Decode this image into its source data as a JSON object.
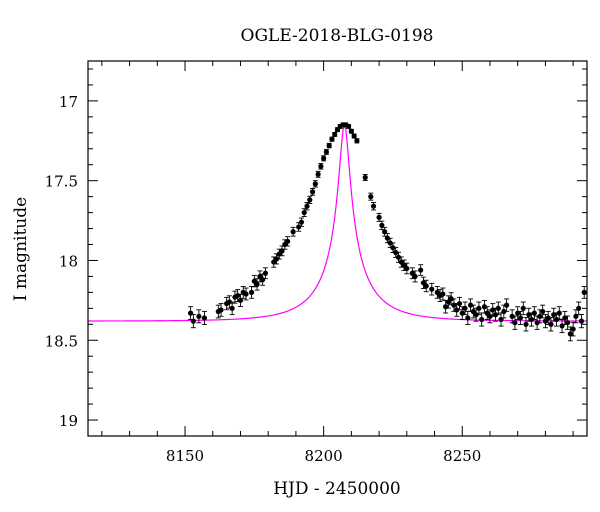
{
  "chart_data": {
    "type": "scatter",
    "title": "OGLE-2018-BLG-0198",
    "xlabel": "HJD - 2450000",
    "ylabel": "I magnitude",
    "xlim": [
      8115,
      8295
    ],
    "ylim": [
      19.1,
      16.75
    ],
    "y_inverted": true,
    "x_ticks": [
      8150,
      8200,
      8250
    ],
    "x_tick_labels": [
      "8150",
      "8200",
      "8250"
    ],
    "y_ticks": [
      17,
      17.5,
      18,
      18.5,
      19
    ],
    "y_tick_labels": [
      "17",
      "17.5",
      "18",
      "18.5",
      "19"
    ],
    "grid": false,
    "colors": {
      "data": "#000000",
      "model": "#ff00ff"
    },
    "model": {
      "name": "",
      "baseline": 18.38,
      "peak_x": 8207.5,
      "peak_y": 17.15,
      "t_E": 19.0,
      "u0": 0.09
    },
    "series": [
      {
        "points": [
          [
            8152,
            18.33
          ],
          [
            8153,
            18.38
          ],
          [
            8155,
            18.35
          ],
          [
            8157,
            18.36
          ],
          [
            8162,
            18.32
          ],
          [
            8163,
            18.31
          ],
          [
            8165,
            18.27
          ],
          [
            8166,
            18.26
          ],
          [
            8167,
            18.3
          ],
          [
            8168,
            18.23
          ],
          [
            8169,
            18.22
          ],
          [
            8170,
            18.25
          ],
          [
            8171,
            18.2
          ],
          [
            8172,
            18.21
          ],
          [
            8174,
            18.2
          ],
          [
            8175,
            18.13
          ],
          [
            8176,
            18.15
          ],
          [
            8177,
            18.1
          ],
          [
            8178,
            18.12
          ],
          [
            8179,
            18.08
          ],
          [
            8182,
            18.01
          ],
          [
            8183,
            17.99
          ],
          [
            8184,
            17.96
          ],
          [
            8185,
            17.94
          ],
          [
            8186,
            17.9
          ],
          [
            8187,
            17.88
          ],
          [
            8189,
            17.82
          ],
          [
            8191,
            17.79
          ],
          [
            8192,
            17.76
          ],
          [
            8193,
            17.7
          ],
          [
            8194,
            17.66
          ],
          [
            8195,
            17.62
          ],
          [
            8196,
            17.57
          ],
          [
            8197,
            17.52
          ],
          [
            8198,
            17.46
          ],
          [
            8199,
            17.41
          ],
          [
            8200,
            17.36
          ],
          [
            8201,
            17.32
          ],
          [
            8202,
            17.28
          ],
          [
            8203,
            17.24
          ],
          [
            8204,
            17.21
          ],
          [
            8205,
            17.18
          ],
          [
            8206,
            17.16
          ],
          [
            8207,
            17.15
          ],
          [
            8208,
            17.15
          ],
          [
            8209,
            17.16
          ],
          [
            8210,
            17.19
          ],
          [
            8211,
            17.22
          ],
          [
            8212,
            17.25
          ],
          [
            8215,
            17.48
          ],
          [
            8217,
            17.6
          ],
          [
            8218,
            17.66
          ],
          [
            8220,
            17.73
          ],
          [
            8221,
            17.78
          ],
          [
            8222,
            17.82
          ],
          [
            8223,
            17.86
          ],
          [
            8224,
            17.89
          ],
          [
            8225,
            17.92
          ],
          [
            8226,
            17.95
          ],
          [
            8227,
            17.98
          ],
          [
            8228,
            18.01
          ],
          [
            8229,
            18.03
          ],
          [
            8230,
            18.05
          ],
          [
            8232,
            18.08
          ],
          [
            8233,
            18.1
          ],
          [
            8235,
            18.06
          ],
          [
            8236,
            18.14
          ],
          [
            8237,
            18.16
          ],
          [
            8239,
            18.18
          ],
          [
            8241,
            18.2
          ],
          [
            8242,
            18.22
          ],
          [
            8243,
            18.21
          ],
          [
            8244,
            18.29
          ],
          [
            8245,
            18.26
          ],
          [
            8246,
            18.24
          ],
          [
            8247,
            18.28
          ],
          [
            8248,
            18.31
          ],
          [
            8249,
            18.27
          ],
          [
            8250,
            18.33
          ],
          [
            8251,
            18.3
          ],
          [
            8252,
            18.36
          ],
          [
            8253,
            18.28
          ],
          [
            8254,
            18.32
          ],
          [
            8255,
            18.34
          ],
          [
            8256,
            18.3
          ],
          [
            8257,
            18.37
          ],
          [
            8258,
            18.29
          ],
          [
            8259,
            18.33
          ],
          [
            8260,
            18.35
          ],
          [
            8261,
            18.31
          ],
          [
            8262,
            18.34
          ],
          [
            8263,
            18.3
          ],
          [
            8264,
            18.37
          ],
          [
            8265,
            18.32
          ],
          [
            8266,
            18.28
          ],
          [
            8268,
            18.35
          ],
          [
            8269,
            18.39
          ],
          [
            8270,
            18.33
          ],
          [
            8271,
            18.36
          ],
          [
            8272,
            18.3
          ],
          [
            8273,
            18.4
          ],
          [
            8274,
            18.34
          ],
          [
            8275,
            18.37
          ],
          [
            8276,
            18.33
          ],
          [
            8277,
            18.39
          ],
          [
            8278,
            18.35
          ],
          [
            8279,
            18.32
          ],
          [
            8280,
            18.38
          ],
          [
            8281,
            18.36
          ],
          [
            8282,
            18.4
          ],
          [
            8283,
            18.34
          ],
          [
            8284,
            18.37
          ],
          [
            8285,
            18.33
          ],
          [
            8286,
            18.41
          ],
          [
            8287,
            18.36
          ],
          [
            8288,
            18.39
          ],
          [
            8289,
            18.46
          ],
          [
            8290,
            18.43
          ],
          [
            8291,
            18.35
          ],
          [
            8292,
            18.3
          ],
          [
            8293,
            18.38
          ],
          [
            8294,
            18.2
          ]
        ]
      }
    ]
  }
}
